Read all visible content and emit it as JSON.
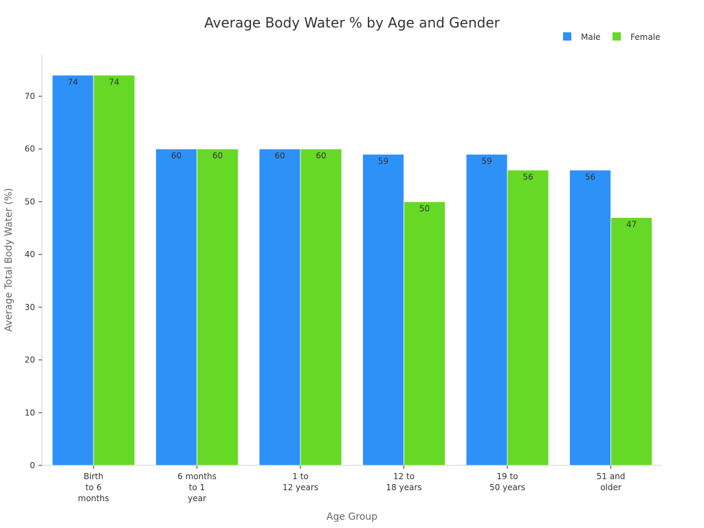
{
  "chart_data": {
    "type": "bar",
    "title": "Average Body Water % by Age and Gender",
    "xlabel": "Age Group",
    "ylabel": "Average Total Body Water (%)",
    "categories": [
      [
        "Birth",
        "to 6",
        "months"
      ],
      [
        "6 months",
        "to 1",
        "year"
      ],
      [
        "1 to",
        "12 years"
      ],
      [
        "12 to",
        "18 years"
      ],
      [
        "19 to",
        "50 years"
      ],
      [
        "51 and",
        "older"
      ]
    ],
    "series": [
      {
        "name": "Male",
        "color": "#2e91f8",
        "values": [
          74,
          60,
          60,
          59,
          59,
          56
        ]
      },
      {
        "name": "Female",
        "color": "#66d926",
        "values": [
          74,
          60,
          60,
          50,
          56,
          47
        ]
      }
    ],
    "ylim": [
      0,
      78
    ],
    "yticks": [
      0,
      10,
      20,
      30,
      40,
      50,
      60,
      70
    ],
    "legend_position": "top-right",
    "grid": false,
    "data_labels": true
  }
}
